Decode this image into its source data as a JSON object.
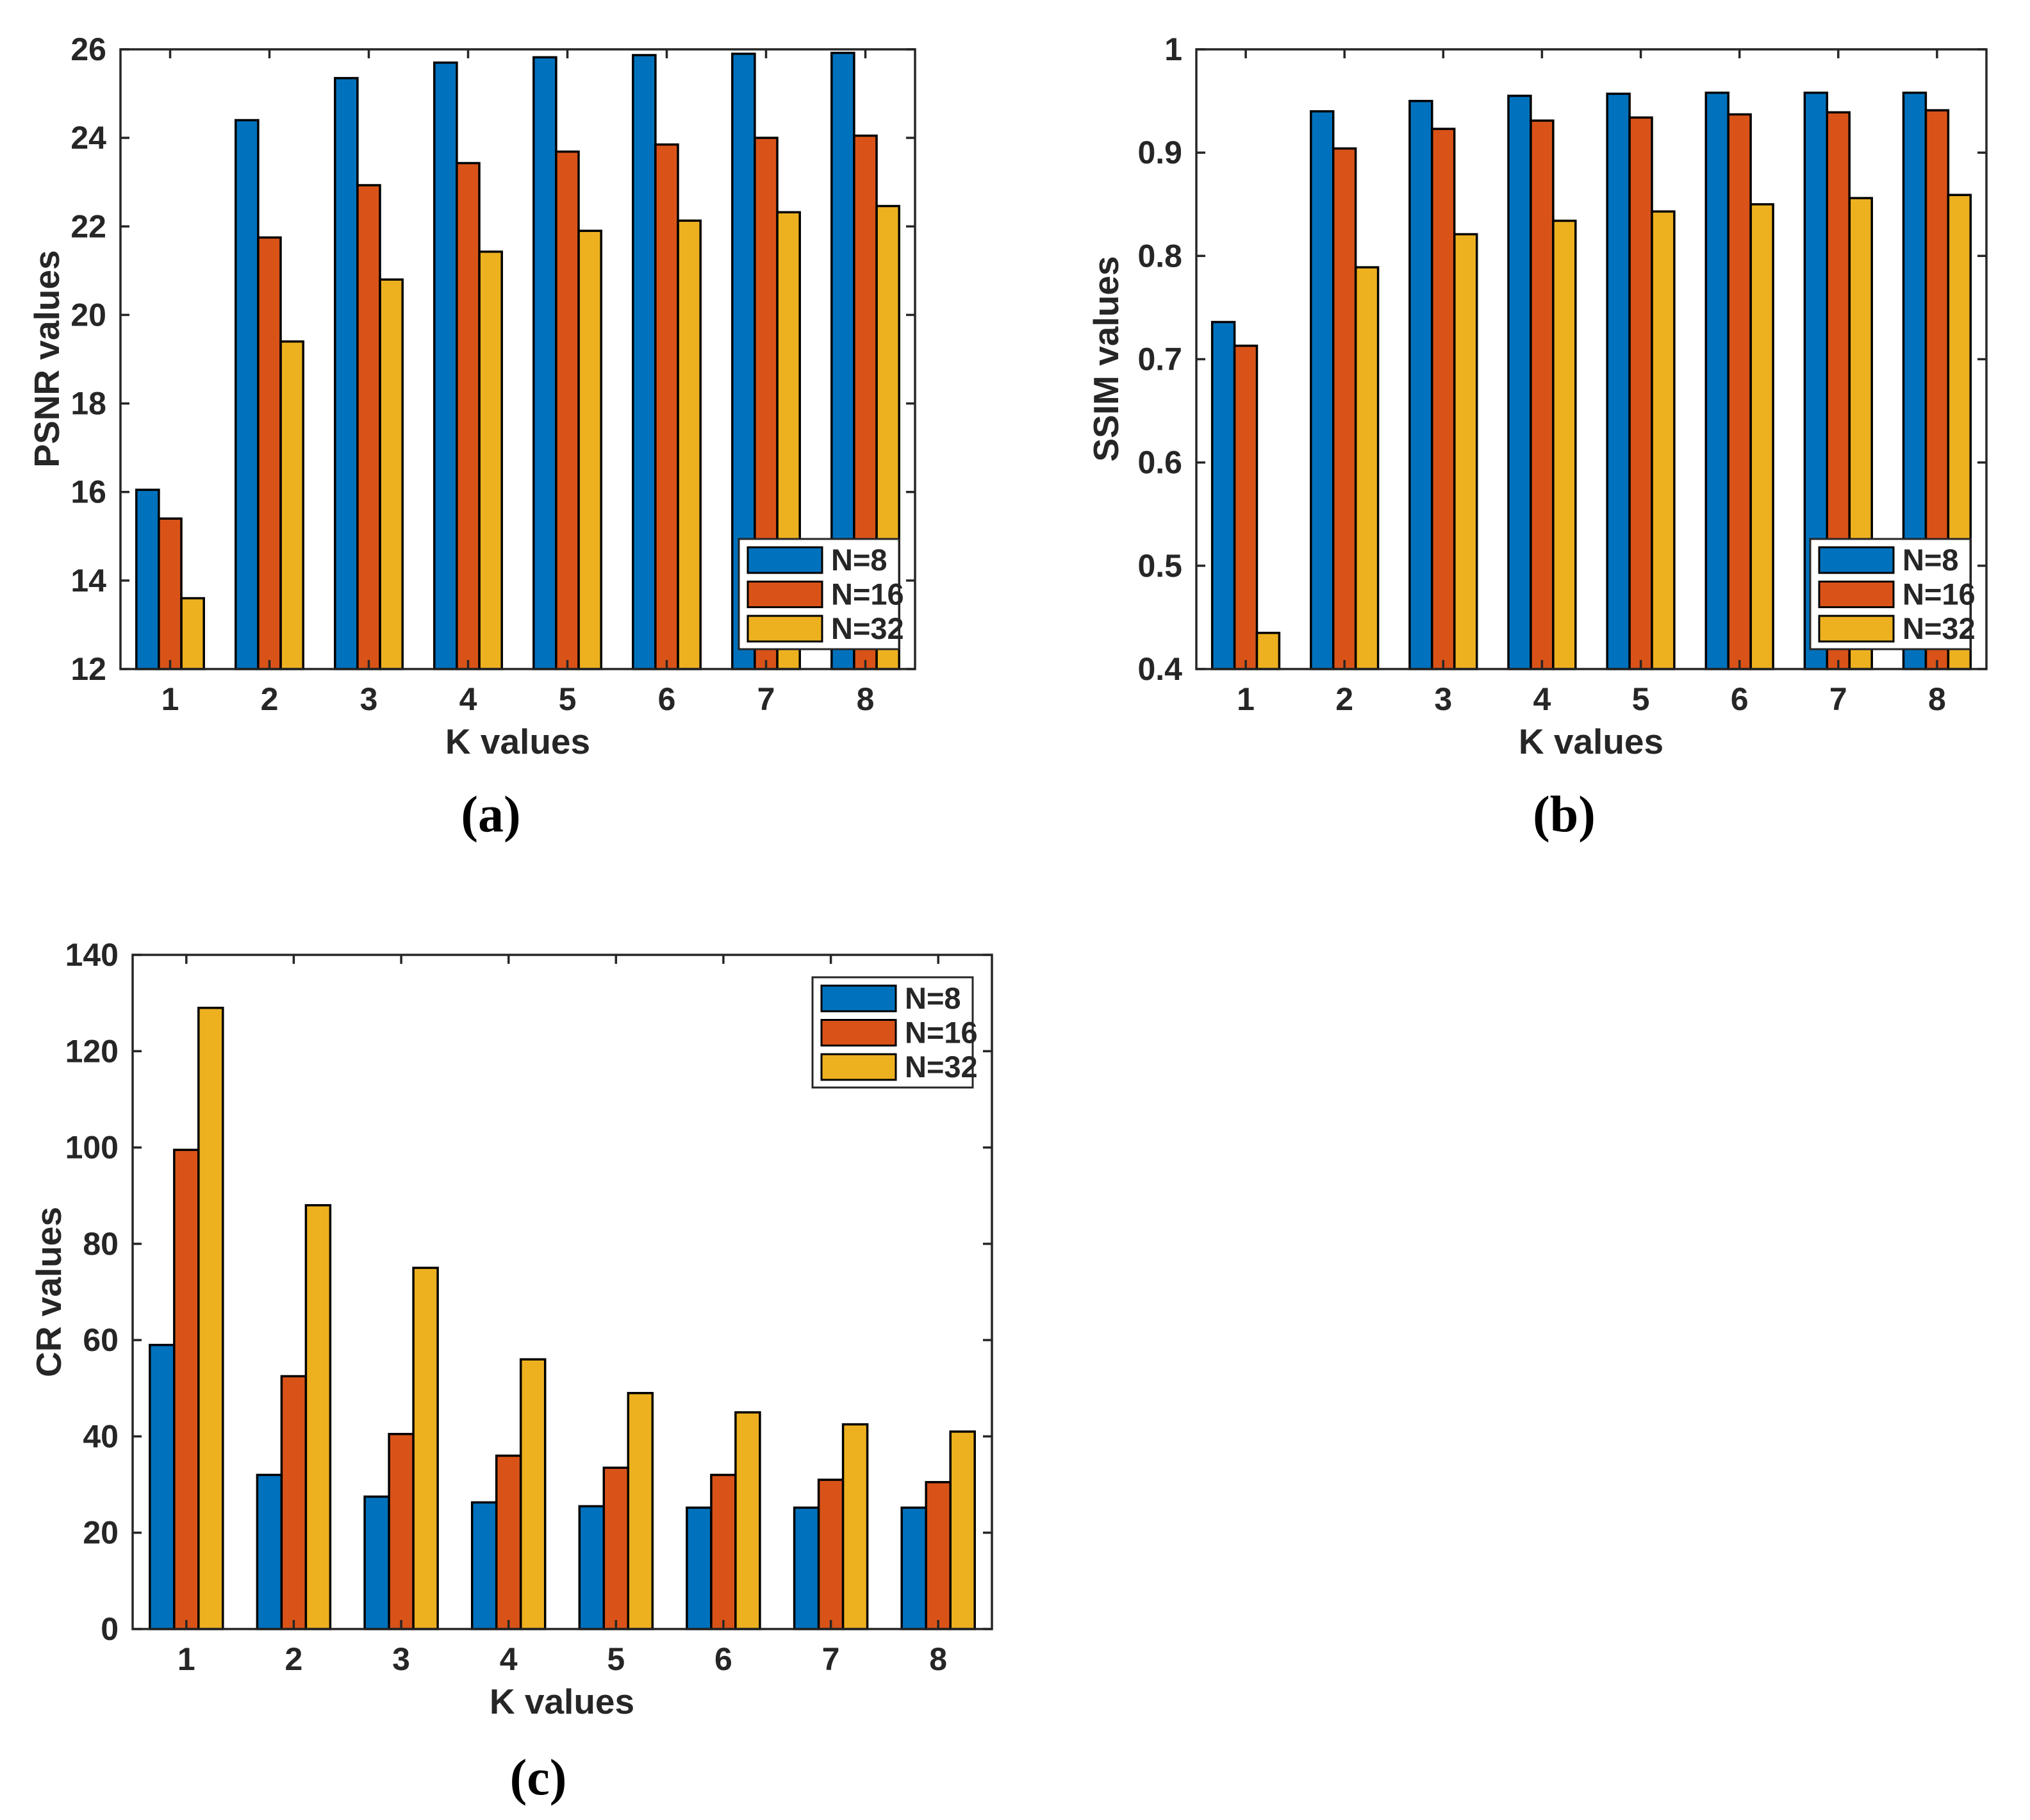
{
  "style": {
    "background": "#FFFFFF",
    "axis_color": "#262626",
    "text_color": "#262626",
    "bar_edge_color": "#000000",
    "caption_color": "#000000"
  },
  "chart_data": [
    {
      "id": "a",
      "type": "bar",
      "caption": "(a)",
      "title": "",
      "xlabel": "K values",
      "ylabel": "PSNR values",
      "ylim": [
        12,
        26
      ],
      "yticks": [
        12,
        14,
        16,
        18,
        20,
        22,
        24,
        26
      ],
      "ytick_labels": [
        "12",
        "14",
        "16",
        "18",
        "20",
        "22",
        "24",
        "26"
      ],
      "categories": [
        "1",
        "2",
        "3",
        "4",
        "5",
        "6",
        "7",
        "8"
      ],
      "grid": false,
      "box": true,
      "legend_position": "southeast",
      "series": [
        {
          "name": "N=8",
          "color": "#0072BD",
          "values": [
            16.05,
            24.4,
            25.35,
            25.7,
            25.82,
            25.87,
            25.9,
            25.92
          ]
        },
        {
          "name": "N=16",
          "color": "#D95319",
          "values": [
            15.4,
            21.75,
            22.93,
            23.43,
            23.69,
            23.85,
            24.0,
            24.05
          ]
        },
        {
          "name": "N=32",
          "color": "#EDB120",
          "values": [
            13.6,
            19.4,
            20.8,
            21.43,
            21.9,
            22.13,
            22.32,
            22.46
          ]
        }
      ]
    },
    {
      "id": "b",
      "type": "bar",
      "caption": "(b)",
      "title": "",
      "xlabel": "K values",
      "ylabel": "SSIM values",
      "ylim": [
        0.4,
        1.0
      ],
      "yticks": [
        0.4,
        0.5,
        0.6,
        0.7,
        0.8,
        0.9,
        1.0
      ],
      "ytick_labels": [
        "0.4",
        "0.5",
        "0.6",
        "0.7",
        "0.8",
        "0.9",
        "1"
      ],
      "categories": [
        "1",
        "2",
        "3",
        "4",
        "5",
        "6",
        "7",
        "8"
      ],
      "grid": false,
      "box": true,
      "legend_position": "southeast",
      "series": [
        {
          "name": "N=8",
          "color": "#0072BD",
          "values": [
            0.736,
            0.94,
            0.95,
            0.955,
            0.957,
            0.958,
            0.958,
            0.958
          ]
        },
        {
          "name": "N=16",
          "color": "#D95319",
          "values": [
            0.713,
            0.904,
            0.923,
            0.931,
            0.934,
            0.937,
            0.939,
            0.941
          ]
        },
        {
          "name": "N=32",
          "color": "#EDB120",
          "values": [
            0.435,
            0.789,
            0.821,
            0.834,
            0.843,
            0.85,
            0.856,
            0.859
          ]
        }
      ]
    },
    {
      "id": "c",
      "type": "bar",
      "caption": "(c)",
      "title": "",
      "xlabel": "K values",
      "ylabel": "CR values",
      "ylim": [
        0,
        140
      ],
      "yticks": [
        0,
        20,
        40,
        60,
        80,
        100,
        120,
        140
      ],
      "ytick_labels": [
        "0",
        "20",
        "40",
        "60",
        "80",
        "100",
        "120",
        "140"
      ],
      "categories": [
        "1",
        "2",
        "3",
        "4",
        "5",
        "6",
        "7",
        "8"
      ],
      "grid": false,
      "box": true,
      "legend_position": "northeast",
      "series": [
        {
          "name": "N=8",
          "color": "#0072BD",
          "values": [
            59,
            32,
            27.5,
            26.3,
            25.5,
            25.2,
            25.2,
            25.2
          ]
        },
        {
          "name": "N=16",
          "color": "#D95319",
          "values": [
            99.5,
            52.5,
            40.5,
            36,
            33.5,
            32,
            31,
            30.5
          ]
        },
        {
          "name": "N=32",
          "color": "#EDB120",
          "values": [
            129,
            88,
            75,
            56,
            49,
            45,
            42.5,
            41
          ]
        }
      ]
    }
  ]
}
